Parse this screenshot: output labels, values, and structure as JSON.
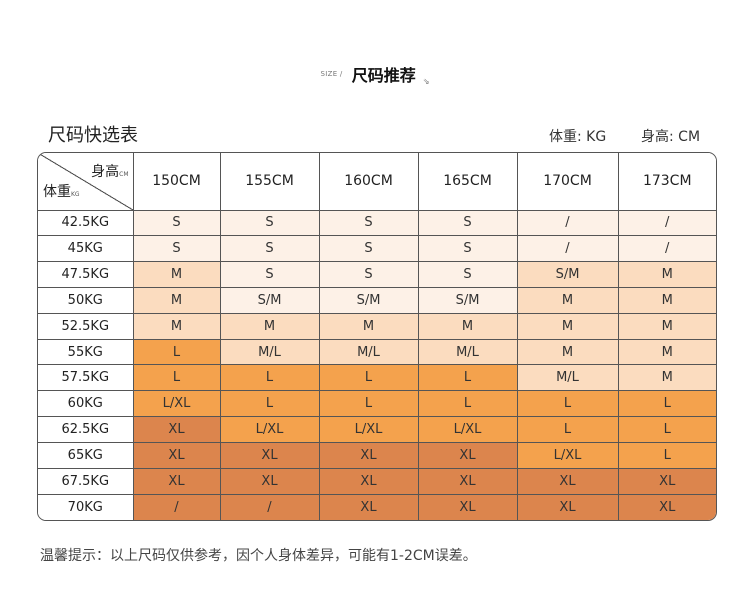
{
  "header": {
    "size_tag": "SIZE /",
    "title": "尺码推荐",
    "arrow": "⇘"
  },
  "subtitle": "尺码快选表",
  "units": {
    "weight": "体重: KG",
    "height": "身高: CM"
  },
  "corner": {
    "height_label": "身高",
    "height_unit": "CM",
    "weight_label": "体重",
    "weight_unit": "KG"
  },
  "heights": [
    "150CM",
    "155CM",
    "160CM",
    "165CM",
    "170CM",
    "173CM"
  ],
  "rows": [
    {
      "weight": "42.5KG",
      "sizes": [
        "S",
        "S",
        "S",
        "S",
        "/",
        "/"
      ]
    },
    {
      "weight": "45KG",
      "sizes": [
        "S",
        "S",
        "S",
        "S",
        "/",
        "/"
      ]
    },
    {
      "weight": "47.5KG",
      "sizes": [
        "M",
        "S",
        "S",
        "S",
        "S/M",
        "M"
      ]
    },
    {
      "weight": "50KG",
      "sizes": [
        "M",
        "S/M",
        "S/M",
        "S/M",
        "M",
        "M"
      ]
    },
    {
      "weight": "52.5KG",
      "sizes": [
        "M",
        "M",
        "M",
        "M",
        "M",
        "M"
      ]
    },
    {
      "weight": "55KG",
      "sizes": [
        "L",
        "M/L",
        "M/L",
        "M/L",
        "M",
        "M"
      ]
    },
    {
      "weight": "57.5KG",
      "sizes": [
        "L",
        "L",
        "L",
        "L",
        "M/L",
        "M"
      ]
    },
    {
      "weight": "60KG",
      "sizes": [
        "L/XL",
        "L",
        "L",
        "L",
        "L",
        "L"
      ]
    },
    {
      "weight": "62.5KG",
      "sizes": [
        "XL",
        "L/XL",
        "L/XL",
        "L/XL",
        "L",
        "L"
      ]
    },
    {
      "weight": "65KG",
      "sizes": [
        "XL",
        "XL",
        "XL",
        "XL",
        "L/XL",
        "L"
      ]
    },
    {
      "weight": "67.5KG",
      "sizes": [
        "XL",
        "XL",
        "XL",
        "XL",
        "XL",
        "XL"
      ]
    },
    {
      "weight": "70KG",
      "sizes": [
        "/",
        "/",
        "XL",
        "XL",
        "XL",
        "XL"
      ]
    }
  ],
  "cell_colors": [
    [
      "#fdf1e7",
      "#fdf1e7",
      "#fdf1e7",
      "#fdf1e7",
      "#fdf1e7",
      "#fdf1e7"
    ],
    [
      "#fdf1e7",
      "#fdf1e7",
      "#fdf1e7",
      "#fdf1e7",
      "#fdf1e7",
      "#fdf1e7"
    ],
    [
      "#fbdcbf",
      "#fdf1e7",
      "#fdf1e7",
      "#fdf1e7",
      "#fbdcbf",
      "#fbdcbf"
    ],
    [
      "#fbdcbf",
      "#fdf1e7",
      "#fdf1e7",
      "#fdf1e7",
      "#fbdcbf",
      "#fbdcbf"
    ],
    [
      "#fbdcbf",
      "#fbdcbf",
      "#fbdcbf",
      "#fbdcbf",
      "#fbdcbf",
      "#fbdcbf"
    ],
    [
      "#f4a24d",
      "#fbdcbf",
      "#fbdcbf",
      "#fbdcbf",
      "#fbdcbf",
      "#fbdcbf"
    ],
    [
      "#f4a24d",
      "#f4a24d",
      "#f4a24d",
      "#f4a24d",
      "#fbdcbf",
      "#fbdcbf"
    ],
    [
      "#f4a24d",
      "#f4a24d",
      "#f4a24d",
      "#f4a24d",
      "#f4a24d",
      "#f4a24d"
    ],
    [
      "#dc854d",
      "#f4a24d",
      "#f4a24d",
      "#f4a24d",
      "#f4a24d",
      "#f4a24d"
    ],
    [
      "#dc854d",
      "#dc854d",
      "#dc854d",
      "#dc854d",
      "#f4a24d",
      "#f4a24d"
    ],
    [
      "#dc854d",
      "#dc854d",
      "#dc854d",
      "#dc854d",
      "#dc854d",
      "#dc854d"
    ],
    [
      "#dc854d",
      "#dc854d",
      "#dc854d",
      "#dc854d",
      "#dc854d",
      "#dc854d"
    ]
  ],
  "note": "温馨提示：以上尺码仅供参考，因个人身体差异，可能有1-2CM误差。"
}
